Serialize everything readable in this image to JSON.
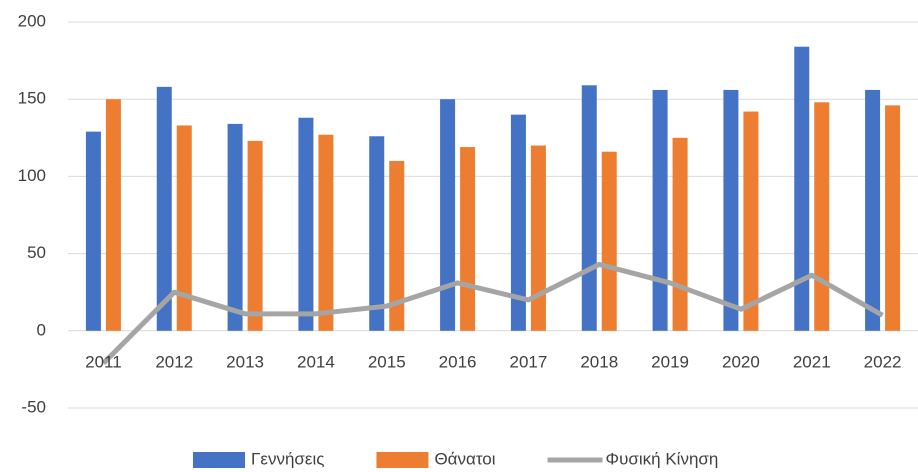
{
  "chart_data": {
    "type": "bar-line",
    "categories": [
      "2011",
      "2012",
      "2013",
      "2014",
      "2015",
      "2016",
      "2017",
      "2018",
      "2019",
      "2020",
      "2021",
      "2022"
    ],
    "series": [
      {
        "name": "Γεννήσεις",
        "type": "bar",
        "color": "#4472c4",
        "values": [
          129,
          158,
          134,
          138,
          126,
          150,
          140,
          159,
          156,
          156,
          184,
          156
        ]
      },
      {
        "name": "Θάνατοι",
        "type": "bar",
        "color": "#ed7d31",
        "values": [
          150,
          133,
          123,
          127,
          110,
          119,
          120,
          116,
          125,
          142,
          148,
          146
        ]
      },
      {
        "name": "Φυσική Κίνηση",
        "type": "line",
        "color": "#a5a5a5",
        "values": [
          -21,
          25,
          11,
          11,
          16,
          31,
          20,
          43,
          31,
          14,
          36,
          10
        ]
      }
    ],
    "ylim": [
      -50,
      200
    ],
    "yticks": [
      -50,
      0,
      50,
      100,
      150,
      200
    ],
    "grid": true,
    "legend": "bottom"
  }
}
